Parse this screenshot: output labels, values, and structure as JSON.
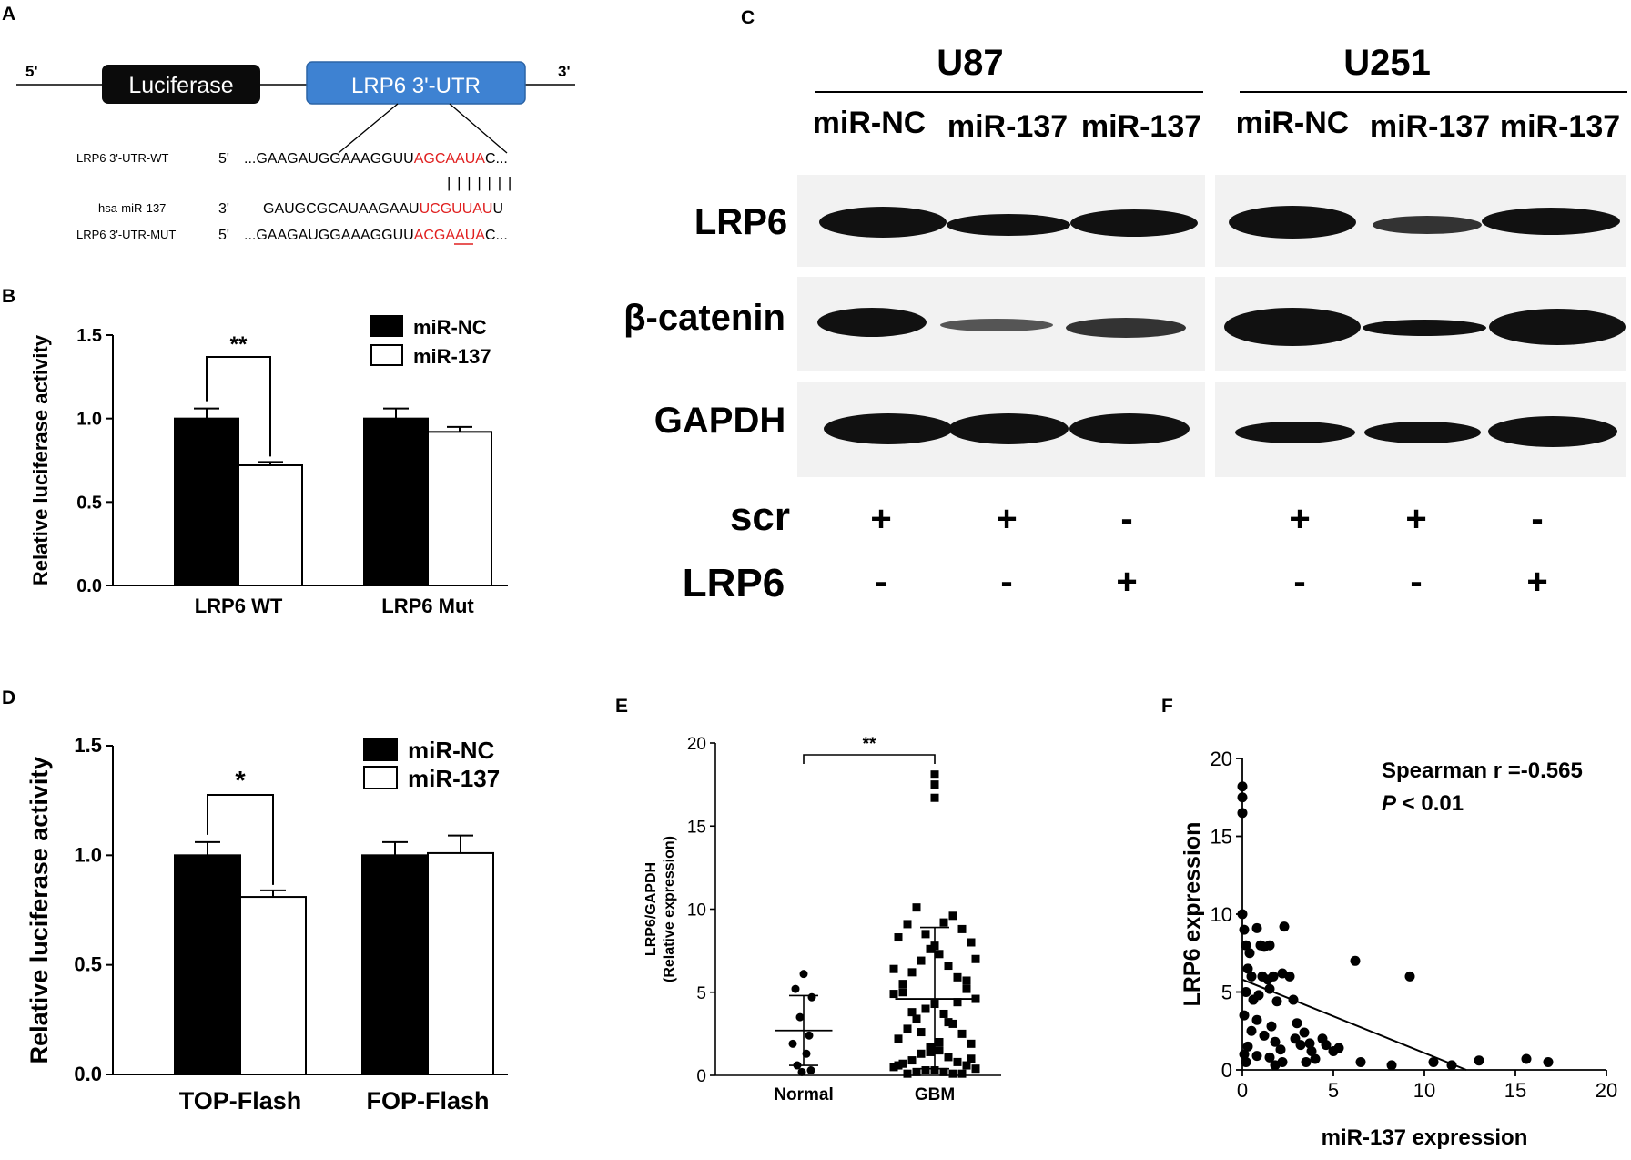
{
  "panel_a": {
    "letter": "A",
    "five_prime": "5'",
    "three_prime": "3'",
    "luciferase_label": "Luciferase",
    "utr_label": "LRP6 3'-UTR",
    "rows": [
      {
        "name": "LRP6 3'-UTR-WT",
        "end": "5'",
        "seq_black": "...GAAGAUGGAAAGGUU",
        "seq_red": "AGCAAUA",
        "seq_tail": "C..."
      },
      {
        "name": "hsa-miR-137",
        "end": "3'",
        "seq_black": "GAUGCGCAUAAGAAU",
        "seq_red": "UCGUUAU",
        "seq_tail": "U"
      },
      {
        "name": "LRP6 3'-UTR-MUT",
        "end": "5'",
        "seq_black": "...GAAGAUGGAAAGGUU",
        "seq_red": "ACGAAUA",
        "seq_tail": "C..."
      }
    ],
    "pair_bars": "| | | | | | |"
  },
  "panel_b": {
    "letter": "B",
    "chart_data": {
      "type": "bar",
      "ylabel": "Relative luciferase activity",
      "ylim": [
        0,
        1.5
      ],
      "yticks": [
        "0.0",
        "0.5",
        "1.0",
        "1.5"
      ],
      "categories": [
        "LRP6 WT",
        "LRP6 Mut"
      ],
      "series": [
        {
          "name": "miR-NC",
          "values": [
            1.0,
            1.0
          ],
          "errors": [
            0.06,
            0.06
          ]
        },
        {
          "name": "miR-137",
          "values": [
            0.72,
            0.92
          ],
          "errors": [
            0.02,
            0.03
          ]
        }
      ],
      "annotation": "**",
      "legend": "top-right"
    }
  },
  "panel_c": {
    "letter": "C",
    "groups": [
      "U87",
      "U251"
    ],
    "lanes": [
      "miR-NC",
      "miR-137",
      "miR-137",
      "miR-NC",
      "miR-137",
      "miR-137"
    ],
    "proteins": [
      "LRP6",
      "β-catenin",
      "GAPDH"
    ],
    "scr_label": "scr",
    "lrp6_label": "LRP6",
    "scr_signs": [
      "+",
      "+",
      "-",
      "+",
      "+",
      "-"
    ],
    "lrp6_signs": [
      "-",
      "-",
      "+",
      "-",
      "-",
      "+"
    ]
  },
  "panel_d": {
    "letter": "D",
    "chart_data": {
      "type": "bar",
      "ylabel": "Relative luciferase activity",
      "ylim": [
        0,
        1.5
      ],
      "yticks": [
        "0.0",
        "0.5",
        "1.0",
        "1.5"
      ],
      "categories": [
        "TOP-Flash",
        "FOP-Flash"
      ],
      "series": [
        {
          "name": "miR-NC",
          "values": [
            1.0,
            1.0
          ],
          "errors": [
            0.06,
            0.06
          ]
        },
        {
          "name": "miR-137",
          "values": [
            0.81,
            1.01
          ],
          "errors": [
            0.03,
            0.08
          ]
        }
      ],
      "annotation": "*",
      "legend": "top-right"
    }
  },
  "panel_e": {
    "letter": "E",
    "chart_data": {
      "type": "scatter",
      "ylabel_line1": "LRP6/GAPDH",
      "ylabel_line2": "(Relative expression)",
      "ylim": [
        0,
        20
      ],
      "yticks": [
        "0",
        "5",
        "10",
        "15",
        "20"
      ],
      "categories": [
        "Normal",
        "GBM"
      ],
      "annotation": "**",
      "normal": {
        "mean": 2.7,
        "sd_low": 0.6,
        "sd_high": 4.8,
        "values": [
          6.1,
          5.2,
          4.7,
          3.5,
          2.4,
          1.9,
          1.3,
          0.6,
          0.3,
          0.2
        ]
      },
      "gbm": {
        "mean": 4.6,
        "sd_low": 0.4,
        "sd_high": 8.9,
        "values": [
          18.1,
          17.5,
          16.7,
          10.1,
          9.6,
          9.1,
          8.8,
          8.3,
          8.0,
          7.6,
          7.3,
          6.9,
          6.6,
          6.2,
          5.9,
          5.5,
          5.2,
          4.9,
          4.6,
          4.3,
          4.0,
          3.7,
          3.4,
          3.1,
          2.8,
          2.5,
          2.2,
          1.9,
          1.7,
          1.5,
          1.3,
          1.1,
          0.9,
          0.8,
          0.7,
          0.6,
          0.5,
          0.4,
          0.3,
          0.3,
          0.2,
          0.2,
          0.1,
          0.1,
          0.1,
          0.6,
          1.0,
          1.4,
          2.0,
          2.6,
          3.2,
          3.8,
          4.4,
          5.0,
          5.7,
          6.4,
          7.0,
          7.8,
          8.5,
          9.2
        ]
      }
    }
  },
  "panel_f": {
    "letter": "F",
    "chart_data": {
      "type": "scatter",
      "xlabel": "miR-137 expression",
      "ylabel": "LRP6 expression",
      "xlim": [
        0,
        20
      ],
      "ylim": [
        0,
        20
      ],
      "xticks": [
        "0",
        "5",
        "10",
        "15",
        "20"
      ],
      "yticks": [
        "0",
        "5",
        "10",
        "15",
        "20"
      ],
      "annotation_line1": "Spearman r =-0.565",
      "annotation_p": "P",
      "annotation_rest": " < 0.01",
      "fit": {
        "x0": 0,
        "y0": 5.8,
        "x1": 12.3,
        "y1": 0
      },
      "points": [
        [
          0,
          18.2
        ],
        [
          0,
          17.5
        ],
        [
          0,
          16.5
        ],
        [
          0,
          10
        ],
        [
          0.1,
          9
        ],
        [
          0.2,
          8
        ],
        [
          0.4,
          7.5
        ],
        [
          0.3,
          6.5
        ],
        [
          0.5,
          6
        ],
        [
          0.2,
          5
        ],
        [
          0.6,
          4.5
        ],
        [
          0.1,
          3.5
        ],
        [
          0.5,
          2.5
        ],
        [
          0.3,
          1.5
        ],
        [
          0.1,
          1
        ],
        [
          0.2,
          0.5
        ],
        [
          0.8,
          9.1
        ],
        [
          1,
          8
        ],
        [
          1.2,
          7.9
        ],
        [
          1.5,
          8
        ],
        [
          1.1,
          6
        ],
        [
          1.4,
          5.8
        ],
        [
          1.7,
          6
        ],
        [
          0.9,
          4.8
        ],
        [
          1.5,
          5.2
        ],
        [
          1.9,
          4.4
        ],
        [
          0.8,
          3.2
        ],
        [
          1.6,
          2.8
        ],
        [
          1.2,
          2.2
        ],
        [
          1.8,
          1.8
        ],
        [
          2.1,
          1.3
        ],
        [
          0.8,
          0.9
        ],
        [
          1.5,
          0.8
        ],
        [
          1.8,
          0.3
        ],
        [
          2.2,
          0.5
        ],
        [
          2.3,
          9.2
        ],
        [
          2.2,
          6.2
        ],
        [
          2.6,
          6
        ],
        [
          2.8,
          4.5
        ],
        [
          3,
          3
        ],
        [
          2.9,
          2
        ],
        [
          3.2,
          1.6
        ],
        [
          3.4,
          2.4
        ],
        [
          3.7,
          1.7
        ],
        [
          3.8,
          1.2
        ],
        [
          3.5,
          0.5
        ],
        [
          4,
          0.7
        ],
        [
          4.4,
          2
        ],
        [
          4.6,
          1.6
        ],
        [
          5,
          1.2
        ],
        [
          5.3,
          1.4
        ],
        [
          6.2,
          7
        ],
        [
          6.5,
          0.5
        ],
        [
          8.2,
          0.3
        ],
        [
          9.2,
          6
        ],
        [
          10.5,
          0.5
        ],
        [
          11.5,
          0.3
        ],
        [
          13,
          0.6
        ],
        [
          15.6,
          0.7
        ],
        [
          16.8,
          0.5
        ]
      ]
    }
  }
}
